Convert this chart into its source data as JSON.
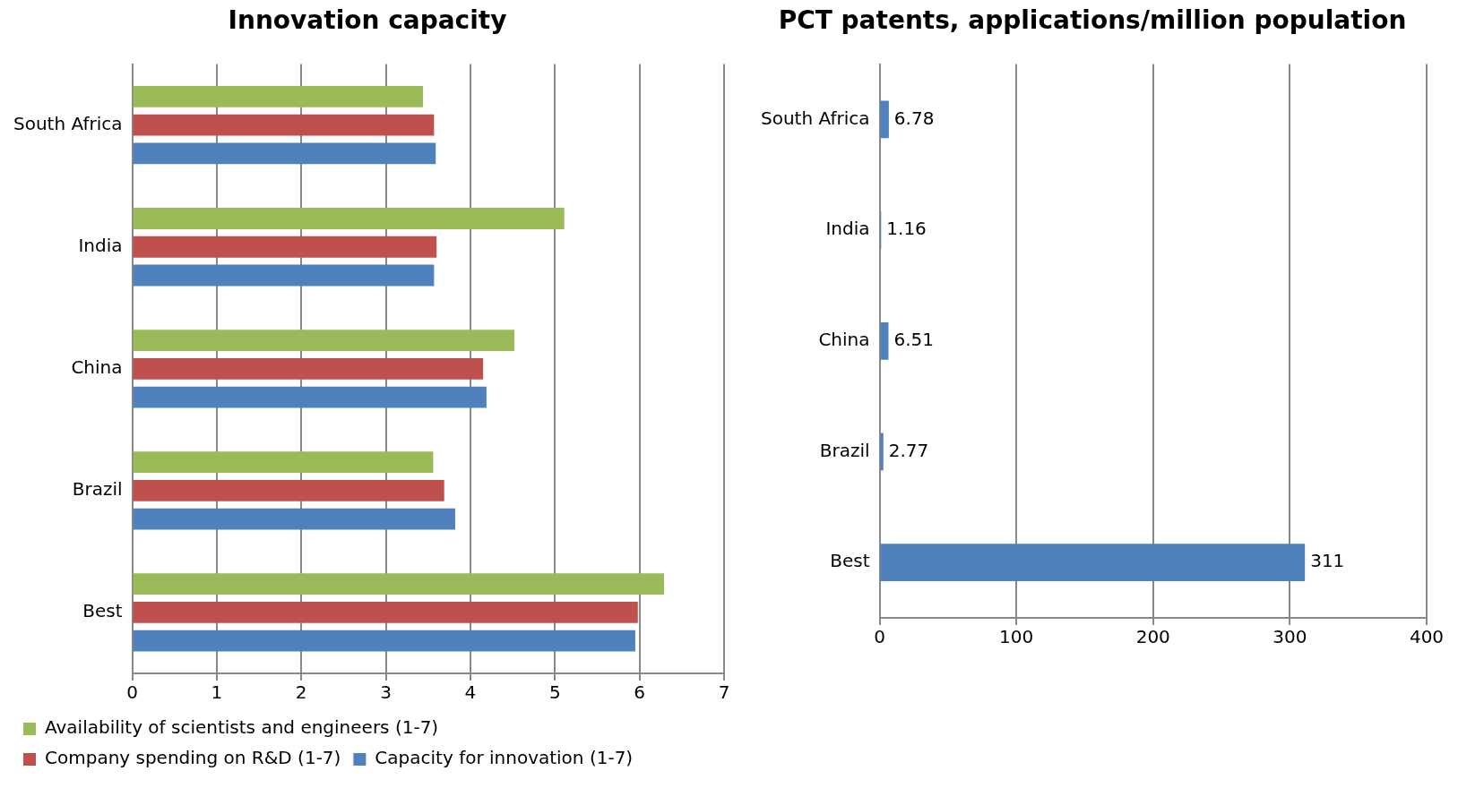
{
  "chart_data": [
    {
      "type": "bar",
      "orientation": "horizontal",
      "title": "Innovation capacity",
      "categories": [
        "South Africa",
        "India",
        "China",
        "Brazil",
        "Best"
      ],
      "series": [
        {
          "name": "Availability of scientists and engineers (1-7)",
          "color": "#9bbb59",
          "values": [
            3.44,
            5.11,
            4.52,
            3.56,
            6.29
          ]
        },
        {
          "name": "Company spending on R&D (1-7)",
          "color": "#c0504d",
          "values": [
            3.57,
            3.6,
            4.15,
            3.69,
            5.98
          ]
        },
        {
          "name": "Capacity for innovation (1-7)",
          "color": "#4f81bd",
          "values": [
            3.59,
            3.57,
            4.19,
            3.82,
            5.95
          ]
        }
      ],
      "xlim": [
        0,
        7
      ],
      "xticks": [
        0,
        1,
        2,
        3,
        4,
        5,
        6,
        7
      ],
      "grid": "x",
      "legend": "bottom"
    },
    {
      "type": "bar",
      "orientation": "horizontal",
      "title": "PCT patents, applications/million population",
      "categories": [
        "South Africa",
        "India",
        "China",
        "Brazil",
        "Best"
      ],
      "values": [
        6.78,
        1.16,
        6.51,
        2.77,
        311
      ],
      "color": "#4f81bd",
      "data_labels": true,
      "xlim": [
        0,
        400
      ],
      "xticks": [
        0,
        100,
        200,
        300,
        400
      ],
      "grid": "x"
    }
  ]
}
